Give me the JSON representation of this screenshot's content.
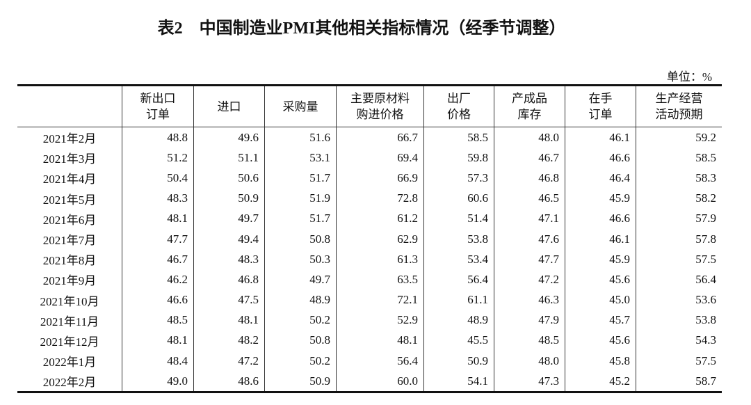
{
  "title": {
    "number": "表2",
    "text": "中国制造业PMI其他相关指标情况（经季节调整）"
  },
  "unit": "单位：%",
  "table": {
    "header": [
      [
        "新出口",
        "订单"
      ],
      [
        "进口"
      ],
      [
        "采购量"
      ],
      [
        "主要原材料",
        "购进价格"
      ],
      [
        "出厂",
        "价格"
      ],
      [
        "产成品",
        "库存"
      ],
      [
        "在手",
        "订单"
      ],
      [
        "生产经营",
        "活动预期"
      ]
    ],
    "rows": [
      {
        "label": "2021年2月",
        "values": [
          "48.8",
          "49.6",
          "51.6",
          "66.7",
          "58.5",
          "48.0",
          "46.1",
          "59.2"
        ]
      },
      {
        "label": "2021年3月",
        "values": [
          "51.2",
          "51.1",
          "53.1",
          "69.4",
          "59.8",
          "46.7",
          "46.6",
          "58.5"
        ]
      },
      {
        "label": "2021年4月",
        "values": [
          "50.4",
          "50.6",
          "51.7",
          "66.9",
          "57.3",
          "46.8",
          "46.4",
          "58.3"
        ]
      },
      {
        "label": "2021年5月",
        "values": [
          "48.3",
          "50.9",
          "51.9",
          "72.8",
          "60.6",
          "46.5",
          "45.9",
          "58.2"
        ]
      },
      {
        "label": "2021年6月",
        "values": [
          "48.1",
          "49.7",
          "51.7",
          "61.2",
          "51.4",
          "47.1",
          "46.6",
          "57.9"
        ]
      },
      {
        "label": "2021年7月",
        "values": [
          "47.7",
          "49.4",
          "50.8",
          "62.9",
          "53.8",
          "47.6",
          "46.1",
          "57.8"
        ]
      },
      {
        "label": "2021年8月",
        "values": [
          "46.7",
          "48.3",
          "50.3",
          "61.3",
          "53.4",
          "47.7",
          "45.9",
          "57.5"
        ]
      },
      {
        "label": "2021年9月",
        "values": [
          "46.2",
          "46.8",
          "49.7",
          "63.5",
          "56.4",
          "47.2",
          "45.6",
          "56.4"
        ]
      },
      {
        "label": "2021年10月",
        "values": [
          "46.6",
          "47.5",
          "48.9",
          "72.1",
          "61.1",
          "46.3",
          "45.0",
          "53.6"
        ]
      },
      {
        "label": "2021年11月",
        "values": [
          "48.5",
          "48.1",
          "50.2",
          "52.9",
          "48.9",
          "47.9",
          "45.7",
          "53.8"
        ]
      },
      {
        "label": "2021年12月",
        "values": [
          "48.1",
          "48.2",
          "50.8",
          "48.1",
          "45.5",
          "48.5",
          "45.6",
          "54.3"
        ]
      },
      {
        "label": "2022年1月",
        "values": [
          "48.4",
          "47.2",
          "50.2",
          "56.4",
          "50.9",
          "48.0",
          "45.8",
          "57.5"
        ]
      },
      {
        "label": "2022年2月",
        "values": [
          "49.0",
          "48.6",
          "50.9",
          "60.0",
          "54.1",
          "47.3",
          "45.2",
          "58.7"
        ]
      }
    ]
  }
}
